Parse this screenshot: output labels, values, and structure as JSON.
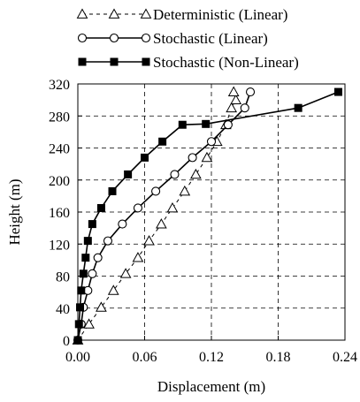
{
  "chart_data": {
    "type": "line",
    "xlabel": "Displacement (m)",
    "ylabel": "Height (m)",
    "xlim": [
      0.0,
      0.24
    ],
    "ylim": [
      0,
      320
    ],
    "xticks": [
      0.0,
      0.06,
      0.12,
      0.18,
      0.24
    ],
    "yticks": [
      0,
      40,
      80,
      120,
      160,
      200,
      240,
      280,
      320
    ],
    "xtick_labels": [
      "0.00",
      "0.06",
      "0.12",
      "0.18",
      "0.24"
    ],
    "ytick_labels": [
      "0",
      "40",
      "80",
      "120",
      "160",
      "200",
      "240",
      "280",
      "320"
    ],
    "grid": true,
    "legend_position": "top",
    "series": [
      {
        "name": "Deterministic (Linear)",
        "line": "dashed",
        "marker": "triangle-open",
        "x": [
          0.0,
          0.01,
          0.021,
          0.032,
          0.043,
          0.054,
          0.064,
          0.075,
          0.085,
          0.096,
          0.106,
          0.116,
          0.125,
          0.133,
          0.138,
          0.142,
          0.14
        ],
        "y": [
          0,
          20,
          41,
          62,
          83,
          103,
          124,
          145,
          165,
          186,
          207,
          228,
          248,
          269,
          290,
          300,
          310
        ]
      },
      {
        "name": "Stochastic (Linear)",
        "line": "solid",
        "marker": "circle-open",
        "x": [
          0.0,
          0.003,
          0.005,
          0.009,
          0.013,
          0.018,
          0.027,
          0.04,
          0.054,
          0.07,
          0.087,
          0.103,
          0.12,
          0.135,
          0.15,
          0.155
        ],
        "y": [
          0,
          20,
          41,
          62,
          83,
          103,
          124,
          145,
          165,
          186,
          207,
          228,
          248,
          269,
          290,
          310
        ]
      },
      {
        "name": "Stochastic (Non-Linear)",
        "line": "solid",
        "marker": "square-filled",
        "x": [
          0.0,
          0.001,
          0.002,
          0.003,
          0.005,
          0.007,
          0.009,
          0.013,
          0.021,
          0.031,
          0.045,
          0.06,
          0.076,
          0.094,
          0.115,
          0.198,
          0.234
        ],
        "y": [
          0,
          20,
          41,
          62,
          83,
          103,
          124,
          145,
          165,
          186,
          207,
          228,
          248,
          269,
          270,
          290,
          310
        ]
      }
    ]
  }
}
